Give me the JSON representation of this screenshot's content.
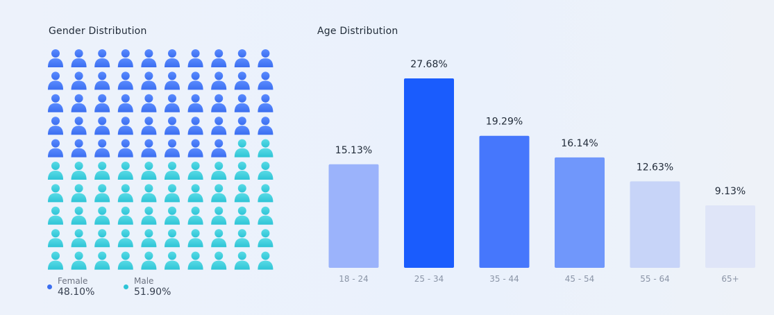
{
  "gender": {
    "title": "Gender Distribution",
    "legend": {
      "female": {
        "label": "Female",
        "value": "48.10%",
        "color": "#3b6ef0"
      },
      "male": {
        "label": "Male",
        "value": "51.90%",
        "color": "#2ec4d6"
      }
    }
  },
  "chart_data": [
    {
      "type": "waffle",
      "title": "Gender Distribution",
      "grid": {
        "rows": 10,
        "cols": 10
      },
      "series": [
        {
          "name": "Female",
          "value": 48.1,
          "color": "#3b6ef0"
        },
        {
          "name": "Male",
          "value": 51.9,
          "color": "#2ec4d6"
        }
      ]
    },
    {
      "type": "bar",
      "title": "Age Distribution",
      "categories": [
        "18 - 24",
        "25 - 34",
        "35 - 44",
        "45 - 54",
        "55 - 64",
        "65+"
      ],
      "values": [
        15.13,
        27.68,
        19.29,
        16.14,
        12.63,
        9.13
      ],
      "data_labels": [
        "15.13%",
        "27.68%",
        "19.29%",
        "16.14%",
        "12.63%",
        "9.13%"
      ],
      "colors": [
        "#9bb3fb",
        "#1a5cfd",
        "#4677fc",
        "#7097fb",
        "#c7d4f8",
        "#dfe5f8"
      ],
      "ylim": [
        0,
        27.68
      ],
      "grid": false
    }
  ]
}
